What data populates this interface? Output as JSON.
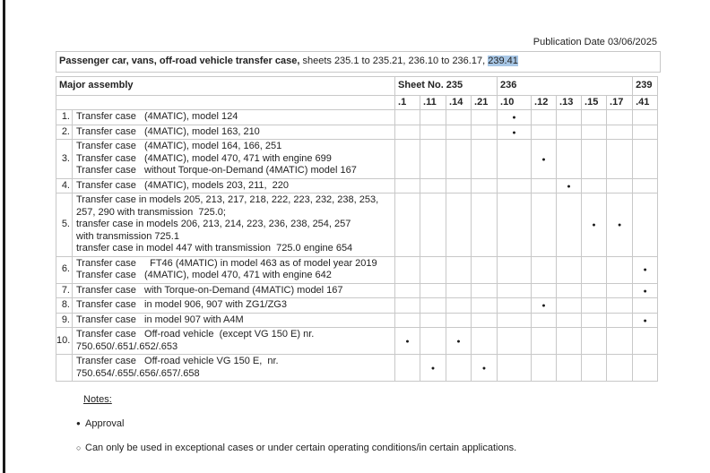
{
  "page": {
    "publication_date": "Publication Date 03/06/2025",
    "title_bold": "Passenger car, vans, off-road vehicle transfer case,",
    "title_mid": " sheets 235.1 to 235.21, 236.10 to 236.17, ",
    "title_highlight": "239.41"
  },
  "table": {
    "major_assembly_header": "Major assembly",
    "groups": [
      {
        "label": "Sheet No. 235",
        "span": 4
      },
      {
        "label": "236",
        "span": 5
      },
      {
        "label": "239",
        "span": 1
      }
    ],
    "subcolumns": [
      ".1",
      ".11",
      ".14",
      ".21",
      ".10",
      ".12",
      ".13",
      ".15",
      ".17",
      ".41"
    ],
    "dot_symbol": "●",
    "rows": [
      {
        "num": "1.",
        "lines": [
          "Transfer case   (4MATIC), model 124"
        ],
        "dots": [
          ".10"
        ]
      },
      {
        "num": "2.",
        "lines": [
          "Transfer case   (4MATIC), model 163, 210"
        ],
        "dots": [
          ".10"
        ]
      },
      {
        "num": "3.",
        "lines": [
          "Transfer case   (4MATIC), model 164, 166, 251",
          "Transfer case   (4MATIC), model 470, 471 with engine 699",
          "Transfer case   without Torque-on-Demand (4MATIC) model 167"
        ],
        "dots": [
          ".12"
        ]
      },
      {
        "num": "4.",
        "lines": [
          "Transfer case   (4MATIC), models 203, 211,  220"
        ],
        "dots": [
          ".13"
        ]
      },
      {
        "num": "5.",
        "lines": [
          "Transfer case in models 205, 213, 217, 218, 222, 223, 232, 238, 253,",
          "257, 290 with transmission  725.0;",
          "transfer case in models 206, 213, 214, 223, 236, 238, 254, 257",
          "with transmission 725.1",
          "transfer case in model 447 with transmission  725.0 engine 654"
        ],
        "dots": [
          ".15",
          ".17"
        ]
      },
      {
        "num": "6.",
        "lines": [
          "Transfer case     FT46 (4MATIC) in model 463 as of model year 2019",
          "Transfer case   (4MATIC), model 470, 471 with engine 642"
        ],
        "dots": [
          ".41"
        ]
      },
      {
        "num": "7.",
        "lines": [
          "Transfer case   with Torque-on-Demand (4MATIC) model 167"
        ],
        "dots": [
          ".41"
        ]
      },
      {
        "num": "8.",
        "lines": [
          "Transfer case   in model 906, 907 with ZG1/ZG3"
        ],
        "dots": [
          ".12"
        ]
      },
      {
        "num": "9.",
        "lines": [
          "Transfer case   in model 907 with A4M"
        ],
        "dots": [
          ".41"
        ]
      },
      {
        "num": "10.",
        "lines": [
          "Transfer case   Off-road vehicle  (except VG 150 E) nr.",
          "750.650/.651/.652/.653"
        ],
        "dots": [
          ".1",
          ".14"
        ]
      },
      {
        "num": "",
        "lines": [
          "Transfer case   Off-road vehicle VG 150 E,  nr.",
          "750.654/.655/.656/.657/.658"
        ],
        "dots": [
          ".11",
          ".21"
        ]
      }
    ]
  },
  "notes": {
    "heading": "Notes:",
    "items": [
      {
        "bullet": "●",
        "text": "Approval"
      },
      {
        "bullet": "○",
        "text": "Can only be used in exceptional cases or under certain operating conditions/in certain applications."
      }
    ]
  },
  "colors": {
    "highlight": "#a8c7e6",
    "table_border": "#c8c8c8",
    "text": "#222222",
    "page_edge": "#1a1a1a"
  }
}
